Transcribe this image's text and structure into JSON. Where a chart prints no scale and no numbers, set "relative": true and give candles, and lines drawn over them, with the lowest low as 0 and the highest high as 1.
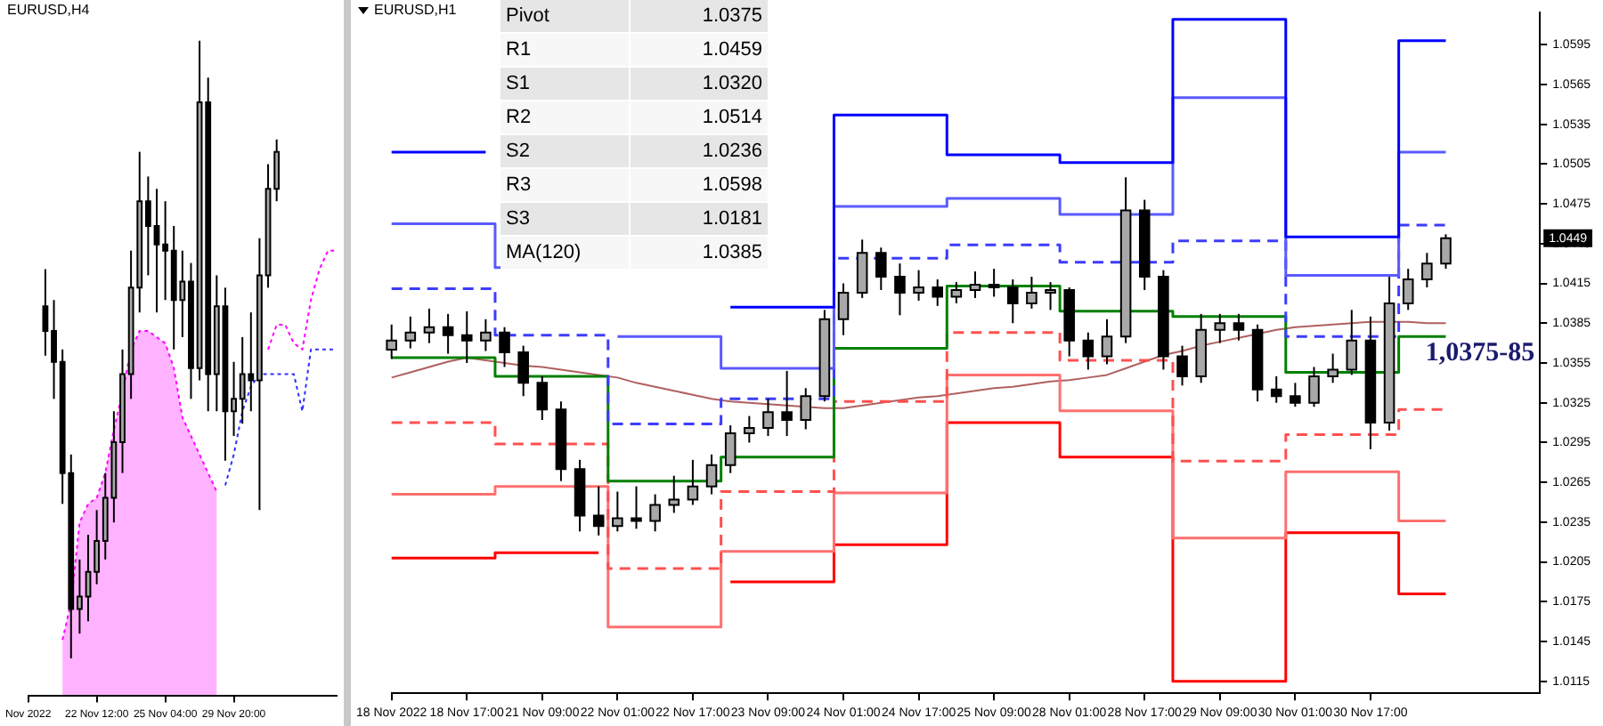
{
  "chart_data": [
    {
      "type": "candlestick",
      "title": "EURUSD,H4",
      "relative": true,
      "marker": "none",
      "categories": [
        "Nov 2022",
        null,
        null,
        null,
        null,
        null,
        null,
        null,
        "22 Nov 12:00",
        null,
        null,
        null,
        null,
        null,
        null,
        null,
        "25 Nov 04:00",
        null,
        null,
        null,
        null,
        null,
        null,
        null,
        "29 Nov 20:00",
        null,
        null,
        null,
        null,
        null,
        null,
        null,
        null,
        null,
        null,
        null,
        null
      ],
      "ohlc": [
        null,
        null,
        [
          0.57,
          0.63,
          0.49,
          0.53
        ],
        [
          0.53,
          0.58,
          0.42,
          0.48
        ],
        [
          0.48,
          0.5,
          0.25,
          0.3
        ],
        [
          0.3,
          0.33,
          0.0,
          0.08
        ],
        [
          0.08,
          0.16,
          0.04,
          0.1
        ],
        [
          0.1,
          0.2,
          0.06,
          0.14
        ],
        [
          0.14,
          0.24,
          0.12,
          0.19
        ],
        [
          0.19,
          0.3,
          0.16,
          0.26
        ],
        [
          0.26,
          0.4,
          0.22,
          0.35
        ],
        [
          0.35,
          0.5,
          0.3,
          0.46
        ],
        [
          0.46,
          0.66,
          0.42,
          0.6
        ],
        [
          0.6,
          0.82,
          0.56,
          0.74
        ],
        [
          0.74,
          0.78,
          0.62,
          0.7
        ],
        [
          0.7,
          0.76,
          0.56,
          0.67
        ],
        [
          0.67,
          0.74,
          0.58,
          0.66
        ],
        [
          0.66,
          0.7,
          0.5,
          0.58
        ],
        [
          0.58,
          0.66,
          0.52,
          0.61
        ],
        [
          0.61,
          0.64,
          0.42,
          0.47
        ],
        [
          0.47,
          1.0,
          0.45,
          0.9
        ],
        [
          0.9,
          0.94,
          0.4,
          0.46
        ],
        [
          0.46,
          0.62,
          0.4,
          0.57
        ],
        [
          0.57,
          0.6,
          0.32,
          0.4
        ],
        [
          0.4,
          0.48,
          0.36,
          0.42
        ],
        [
          0.42,
          0.52,
          0.38,
          0.46
        ],
        [
          0.46,
          0.56,
          0.4,
          0.45
        ],
        [
          0.45,
          0.68,
          0.24,
          0.62
        ],
        [
          0.62,
          0.8,
          0.6,
          0.76
        ],
        [
          0.76,
          0.84,
          0.74,
          0.82
        ],
        null,
        null,
        null,
        null,
        null,
        null,
        null
      ],
      "series": [
        {
          "type": "area",
          "color": "#ff00ff",
          "line_style": "dotted",
          "values": [
            null,
            null,
            null,
            null,
            0.03,
            0.09,
            0.22,
            0.25,
            0.26,
            0.3,
            0.37,
            0.43,
            0.5,
            0.53,
            0.53,
            0.52,
            0.51,
            0.47,
            0.39,
            0.36,
            0.33,
            0.3,
            0.27,
            null,
            null,
            null,
            null,
            null,
            null,
            null,
            null,
            null,
            null,
            null,
            null,
            null,
            null
          ]
        },
        {
          "type": "line",
          "color": "#ff00ff",
          "line_style": "dotted",
          "values": [
            null,
            null,
            null,
            null,
            null,
            null,
            null,
            null,
            null,
            null,
            null,
            null,
            null,
            null,
            null,
            null,
            null,
            null,
            null,
            null,
            null,
            null,
            null,
            null,
            null,
            null,
            null,
            null,
            0.5,
            0.54,
            0.54,
            0.51,
            0.5,
            0.58,
            0.63,
            0.66,
            0.66
          ]
        },
        {
          "type": "line",
          "color": "#3030ff",
          "line_style": "dotted",
          "values": [
            null,
            null,
            null,
            null,
            null,
            null,
            null,
            null,
            null,
            null,
            null,
            null,
            null,
            null,
            null,
            null,
            null,
            null,
            null,
            null,
            null,
            null,
            null,
            0.28,
            0.33,
            0.4,
            0.44,
            0.46,
            0.46,
            0.46,
            0.46,
            0.46,
            0.4,
            0.5,
            0.5,
            0.5,
            0.5
          ]
        }
      ]
    },
    {
      "type": "candlestick",
      "title": "EURUSD,H1",
      "marker": "none",
      "categories": [
        "18 Nov 2022",
        null,
        null,
        null,
        "18 Nov 17:00",
        null,
        null,
        null,
        "21 Nov 09:00",
        null,
        null,
        null,
        "22 Nov 01:00",
        null,
        null,
        null,
        "22 Nov 17:00",
        null,
        null,
        null,
        "23 Nov 09:00",
        null,
        null,
        null,
        "24 Nov 01:00",
        null,
        null,
        null,
        "24 Nov 17:00",
        null,
        null,
        null,
        "25 Nov 09:00",
        null,
        null,
        null,
        "28 Nov 01:00",
        null,
        null,
        null,
        "28 Nov 17:00",
        null,
        null,
        null,
        "29 Nov 09:00",
        null,
        null,
        null,
        "30 Nov 01:00",
        null,
        null,
        null,
        "30 Nov 17:00",
        null,
        null,
        null,
        null,
        null,
        null,
        null,
        null,
        null
      ],
      "ohlc": [
        [
          1.0365,
          1.0384,
          1.0358,
          1.0372
        ],
        [
          1.0372,
          1.039,
          1.0366,
          1.0378
        ],
        [
          1.0378,
          1.0396,
          1.037,
          1.0382
        ],
        [
          1.0382,
          1.0392,
          1.0362,
          1.0376
        ],
        [
          1.0376,
          1.0394,
          1.0355,
          1.0372
        ],
        [
          1.0372,
          1.0388,
          1.0364,
          1.0378
        ],
        [
          1.0378,
          1.0382,
          1.0352,
          1.0363
        ],
        [
          1.0363,
          1.0368,
          1.033,
          1.034
        ],
        [
          1.034,
          1.0345,
          1.0312,
          1.032
        ],
        [
          1.032,
          1.0326,
          1.0266,
          1.0275
        ],
        [
          1.0275,
          1.0282,
          1.0228,
          1.024
        ],
        [
          1.024,
          1.0262,
          1.0225,
          1.0232
        ],
        [
          1.0232,
          1.0258,
          1.0228,
          1.0238
        ],
        [
          1.0238,
          1.0262,
          1.023,
          1.0236
        ],
        [
          1.0236,
          1.0256,
          1.0228,
          1.0248
        ],
        [
          1.0248,
          1.027,
          1.0242,
          1.0252
        ],
        [
          1.0252,
          1.0282,
          1.0248,
          1.0262
        ],
        [
          1.0262,
          1.0286,
          1.0256,
          1.0278
        ],
        [
          1.0278,
          1.0308,
          1.0272,
          1.0302
        ],
        [
          1.0302,
          1.0315,
          1.0295,
          1.0306
        ],
        [
          1.0306,
          1.0328,
          1.03,
          1.0318
        ],
        [
          1.0318,
          1.0349,
          1.03,
          1.0312
        ],
        [
          1.0312,
          1.0336,
          1.0305,
          1.033
        ],
        [
          1.033,
          1.0395,
          1.0326,
          1.0388
        ],
        [
          1.0388,
          1.0415,
          1.0376,
          1.0408
        ],
        [
          1.0408,
          1.0448,
          1.0404,
          1.0438
        ],
        [
          1.0438,
          1.0442,
          1.041,
          1.042
        ],
        [
          1.042,
          1.043,
          1.0391,
          1.0408
        ],
        [
          1.0408,
          1.0425,
          1.0402,
          1.0412
        ],
        [
          1.0412,
          1.0418,
          1.0398,
          1.0405
        ],
        [
          1.0405,
          1.0416,
          1.04,
          1.041
        ],
        [
          1.041,
          1.0424,
          1.0404,
          1.0414
        ],
        [
          1.0414,
          1.0426,
          1.0405,
          1.0412
        ],
        [
          1.0412,
          1.0418,
          1.0385,
          1.04
        ],
        [
          1.04,
          1.042,
          1.0396,
          1.0408
        ],
        [
          1.0408,
          1.0416,
          1.0395,
          1.041
        ],
        [
          1.041,
          1.0412,
          1.036,
          1.0372
        ],
        [
          1.0372,
          1.0378,
          1.035,
          1.036
        ],
        [
          1.036,
          1.0388,
          1.0354,
          1.0375
        ],
        [
          1.0375,
          1.0495,
          1.037,
          1.047
        ],
        [
          1.047,
          1.0478,
          1.041,
          1.042
        ],
        [
          1.042,
          1.0425,
          1.035,
          1.036
        ],
        [
          1.036,
          1.0368,
          1.0338,
          1.0345
        ],
        [
          1.0345,
          1.0392,
          1.034,
          1.038
        ],
        [
          1.038,
          1.0392,
          1.037,
          1.0385
        ],
        [
          1.0385,
          1.0392,
          1.0372,
          1.038
        ],
        [
          1.038,
          1.0384,
          1.0326,
          1.0335
        ],
        [
          1.0335,
          1.0345,
          1.0325,
          1.033
        ],
        [
          1.033,
          1.034,
          1.0322,
          1.0325
        ],
        [
          1.0325,
          1.0352,
          1.0322,
          1.0345
        ],
        [
          1.0345,
          1.0362,
          1.034,
          1.035
        ],
        [
          1.035,
          1.0395,
          1.0346,
          1.0372
        ],
        [
          1.0372,
          1.039,
          1.029,
          1.031
        ],
        [
          1.031,
          1.042,
          1.0304,
          1.04
        ],
        [
          1.04,
          1.0426,
          1.0395,
          1.0418
        ],
        [
          1.0418,
          1.0438,
          1.0412,
          1.043
        ],
        [
          1.043,
          1.0452,
          1.0426,
          1.0449
        ],
        null,
        null,
        null,
        null,
        null
      ],
      "ylim": [
        1.0106,
        1.0619
      ],
      "yticks": [
        1.0115,
        1.0145,
        1.0175,
        1.0205,
        1.0235,
        1.0265,
        1.0295,
        1.0325,
        1.0355,
        1.0385,
        1.0415,
        1.0445,
        1.0475,
        1.0505,
        1.0535,
        1.0565,
        1.0595
      ],
      "series": [
        {
          "type": "step",
          "color": "#0000ff",
          "line_style": "solid",
          "values": [
            1.0514,
            1.0514,
            1.0514,
            1.0514,
            1.0514,
            1.0514,
            null,
            null,
            null,
            null,
            null,
            null,
            null,
            null,
            null,
            null,
            null,
            null,
            1.0397,
            1.0397,
            1.0397,
            1.0397,
            1.0397,
            1.0397,
            1.0542,
            1.0542,
            1.0542,
            1.0542,
            1.0542,
            1.0542,
            1.0512,
            1.0512,
            1.0512,
            1.0512,
            1.0512,
            1.0512,
            1.0506,
            1.0506,
            1.0506,
            1.0506,
            1.0506,
            1.0506,
            1.0614,
            1.0614,
            1.0614,
            1.0614,
            1.0614,
            1.0614,
            1.045,
            1.045,
            1.045,
            1.045,
            1.045,
            1.045,
            1.0598,
            1.0598,
            1.0598,
            null,
            null,
            null,
            null,
            null
          ]
        },
        {
          "type": "step",
          "color": "#5a5aff",
          "line_style": "solid",
          "values": [
            1.046,
            1.046,
            1.046,
            1.046,
            1.046,
            1.046,
            1.0427,
            null,
            null,
            null,
            null,
            null,
            1.0375,
            1.0375,
            1.0375,
            1.0375,
            1.0375,
            1.0375,
            1.0351,
            1.0351,
            1.0351,
            1.0351,
            1.0351,
            1.0351,
            1.0473,
            1.0473,
            1.0473,
            1.0473,
            1.0473,
            1.0473,
            1.0479,
            1.0479,
            1.0479,
            1.0479,
            1.0479,
            1.0479,
            1.0467,
            1.0467,
            1.0467,
            1.0467,
            1.0467,
            1.0467,
            1.0555,
            1.0555,
            1.0555,
            1.0555,
            1.0555,
            1.0555,
            1.0421,
            1.0421,
            1.0421,
            1.0421,
            1.0421,
            1.0421,
            1.0514,
            1.0514,
            1.0514,
            null,
            null,
            null,
            null,
            null
          ]
        },
        {
          "type": "step",
          "color": "#3c3cff",
          "line_style": "dashed",
          "values": [
            1.0411,
            1.0411,
            1.0411,
            1.0411,
            1.0411,
            1.0411,
            1.0376,
            1.0376,
            1.0376,
            1.0376,
            1.0376,
            1.0376,
            1.0309,
            1.0309,
            1.0309,
            1.0309,
            1.0309,
            1.0309,
            1.0328,
            1.0328,
            1.0328,
            1.0328,
            1.0328,
            1.0328,
            1.0434,
            1.0434,
            1.0434,
            1.0434,
            1.0434,
            1.0434,
            1.0444,
            1.0444,
            1.0444,
            1.0444,
            1.0444,
            1.0444,
            1.0431,
            1.0431,
            1.0431,
            1.0431,
            1.0431,
            1.0431,
            1.0447,
            1.0447,
            1.0447,
            1.0447,
            1.0447,
            1.0447,
            1.0375,
            1.0375,
            1.0375,
            1.0375,
            1.0375,
            1.0375,
            1.0459,
            1.0459,
            1.0459,
            null,
            null,
            null,
            null,
            null
          ]
        },
        {
          "type": "step",
          "color": "#008000",
          "line_style": "solid",
          "values": [
            1.0359,
            1.0359,
            1.0359,
            1.0359,
            1.0359,
            1.0359,
            1.0345,
            1.0345,
            1.0345,
            1.0345,
            1.0345,
            1.0345,
            1.0266,
            1.0266,
            1.0266,
            1.0266,
            1.0266,
            1.0266,
            1.0284,
            1.0284,
            1.0284,
            1.0284,
            1.0284,
            1.0284,
            1.0366,
            1.0366,
            1.0366,
            1.0366,
            1.0366,
            1.0366,
            1.0413,
            1.0413,
            1.0413,
            1.0413,
            1.0413,
            1.0413,
            1.0394,
            1.0394,
            1.0394,
            1.0394,
            1.0394,
            1.0394,
            1.039,
            1.039,
            1.039,
            1.039,
            1.039,
            1.039,
            1.0348,
            1.0348,
            1.0348,
            1.0348,
            1.0348,
            1.0348,
            1.0375,
            1.0375,
            1.0375,
            null,
            null,
            null,
            null,
            null
          ]
        },
        {
          "type": "step",
          "color": "#ff5050",
          "line_style": "dashed",
          "values": [
            1.031,
            1.031,
            1.031,
            1.031,
            1.031,
            1.031,
            1.0294,
            1.0294,
            1.0294,
            1.0294,
            1.0294,
            1.0294,
            1.02,
            1.02,
            1.02,
            1.02,
            1.02,
            1.02,
            1.0258,
            1.0258,
            1.0258,
            1.0258,
            1.0258,
            1.0258,
            1.0326,
            1.0326,
            1.0326,
            1.0326,
            1.0326,
            1.0326,
            1.0378,
            1.0378,
            1.0378,
            1.0378,
            1.0378,
            1.0378,
            1.0357,
            1.0357,
            1.0357,
            1.0357,
            1.0357,
            1.0357,
            1.0281,
            1.0281,
            1.0281,
            1.0281,
            1.0281,
            1.0281,
            1.0301,
            1.0301,
            1.0301,
            1.0301,
            1.0301,
            1.0301,
            1.032,
            1.032,
            1.032,
            null,
            null,
            null,
            null,
            null
          ]
        },
        {
          "type": "step",
          "color": "#ff7070",
          "line_style": "solid",
          "values": [
            1.0256,
            1.0256,
            1.0256,
            1.0256,
            1.0256,
            1.0256,
            1.0262,
            1.0262,
            1.0262,
            1.0262,
            1.0262,
            1.0262,
            1.0156,
            1.0156,
            1.0156,
            1.0156,
            1.0156,
            1.0156,
            1.0213,
            1.0213,
            1.0213,
            1.0213,
            1.0213,
            1.0213,
            1.0257,
            1.0257,
            1.0257,
            1.0257,
            1.0257,
            1.0257,
            1.0346,
            1.0346,
            1.0346,
            1.0346,
            1.0346,
            1.0346,
            1.0319,
            1.0319,
            1.0319,
            1.0319,
            1.0319,
            1.0319,
            1.0223,
            1.0223,
            1.0223,
            1.0223,
            1.0223,
            1.0223,
            1.0273,
            1.0273,
            1.0273,
            1.0273,
            1.0273,
            1.0273,
            1.0236,
            1.0236,
            1.0236,
            null,
            null,
            null,
            null,
            null
          ]
        },
        {
          "type": "step",
          "color": "#ff0000",
          "line_style": "solid",
          "values": [
            1.0208,
            1.0208,
            1.0208,
            1.0208,
            1.0208,
            1.0208,
            1.0212,
            1.0212,
            1.0212,
            1.0212,
            1.0212,
            1.0212,
            null,
            null,
            null,
            null,
            null,
            null,
            1.019,
            1.019,
            1.019,
            1.019,
            1.019,
            1.019,
            1.0218,
            1.0218,
            1.0218,
            1.0218,
            1.0218,
            1.0218,
            1.031,
            1.031,
            1.031,
            1.031,
            1.031,
            1.031,
            1.0284,
            1.0284,
            1.0284,
            1.0284,
            1.0284,
            1.0284,
            1.0115,
            1.0115,
            1.0115,
            1.0115,
            1.0115,
            1.0115,
            1.0227,
            1.0227,
            1.0227,
            1.0227,
            1.0227,
            1.0227,
            1.0181,
            1.0181,
            1.0181,
            null,
            null,
            null,
            null,
            null
          ]
        },
        {
          "type": "line",
          "color": "#b06060",
          "line_style": "solid",
          "values": [
            1.0344,
            1.0348,
            1.0352,
            1.0356,
            1.0359,
            1.0357,
            1.0355,
            1.0353,
            1.0352,
            1.035,
            1.0348,
            1.0346,
            1.0344,
            1.034,
            1.0337,
            1.0334,
            1.0331,
            1.0328,
            1.0326,
            1.0325,
            1.0324,
            1.0323,
            1.0322,
            1.0321,
            1.0321,
            1.0323,
            1.0325,
            1.0327,
            1.0329,
            1.033,
            1.0332,
            1.0334,
            1.0336,
            1.0337,
            1.0339,
            1.0341,
            1.0342,
            1.0344,
            1.0346,
            1.0351,
            1.0356,
            1.0361,
            1.0364,
            1.0368,
            1.0371,
            1.0374,
            1.0377,
            1.038,
            1.0382,
            1.0383,
            1.0384,
            1.0385,
            1.0386,
            1.0386,
            1.0386,
            1.0385,
            1.0385,
            null,
            null,
            null,
            null,
            null
          ]
        }
      ],
      "annotations": [
        "Pivot",
        "1.0375",
        "R1",
        "1.0459",
        "S1",
        "1.0320",
        "R2",
        "1.0514",
        "S2",
        "1.0236",
        "R3",
        "1.0598",
        "S3",
        "1.0181",
        "MA(120)",
        "1.0385",
        "1,0375-85",
        {
          "text": "1.0449",
          "y": 1.0449
        }
      ]
    }
  ]
}
